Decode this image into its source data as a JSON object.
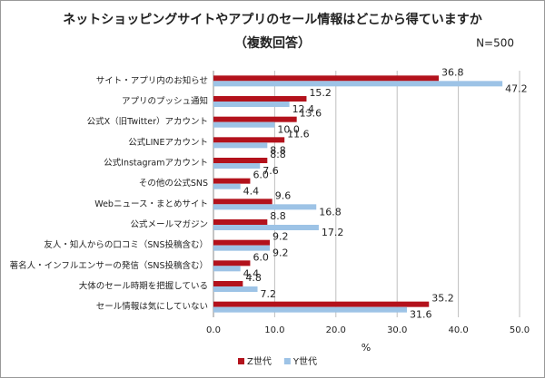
{
  "chart_data": {
    "type": "bar",
    "orientation": "horizontal",
    "title": "ネットショッピングサイトやアプリのセール情報はどこから得ていますか",
    "subtitle": "（複数回答）",
    "note": "N=500",
    "xlabel": "%",
    "categories": [
      "サイト・アプリ内のお知らせ",
      "アプリのプッシュ通知",
      "公式X（旧Twitter）アカウント",
      "公式LINEアカウント",
      "公式Instagramアカウント",
      "その他の公式SNS",
      "Webニュース・まとめサイト",
      "公式メールマガジン",
      "友人・知人からの口コミ（SNS投稿含む）",
      "著名人・インフルエンサーの発信（SNS投稿含む）",
      "大体のセール時期を把握している",
      "セール情報は気にしていない"
    ],
    "series": [
      {
        "name": "Z世代",
        "color": "#b3121c",
        "values": [
          36.8,
          15.2,
          13.6,
          11.6,
          8.8,
          6.0,
          9.6,
          8.8,
          9.2,
          6.0,
          4.8,
          35.2
        ],
        "value_labels": [
          "36.8",
          "15.2",
          "13.6",
          "11.6",
          "8.8",
          "6.0",
          "9.6",
          "8.8",
          "9.2",
          "6.0",
          "4.8",
          "35.2"
        ]
      },
      {
        "name": "Y世代",
        "color": "#9dc3e6",
        "values": [
          47.2,
          12.4,
          10.0,
          8.8,
          7.6,
          4.4,
          16.8,
          17.2,
          9.2,
          4.4,
          7.2,
          31.6
        ],
        "value_labels": [
          "47.2",
          "12.4",
          "10.0",
          "8.8",
          "7.6",
          "4.4",
          "16.8",
          "17.2",
          "9.2",
          "4.4",
          "7.2",
          "31.6"
        ]
      }
    ],
    "xlim": [
      0,
      50
    ],
    "xticks": [
      {
        "value": 0,
        "label": "0.0"
      },
      {
        "value": 10,
        "label": "10.0"
      },
      {
        "value": 20,
        "label": "20.0"
      },
      {
        "value": 30,
        "label": "30.0"
      },
      {
        "value": 40,
        "label": "40.0"
      },
      {
        "value": 50,
        "label": "50.0"
      }
    ],
    "grid": true,
    "legend": "bottom"
  }
}
